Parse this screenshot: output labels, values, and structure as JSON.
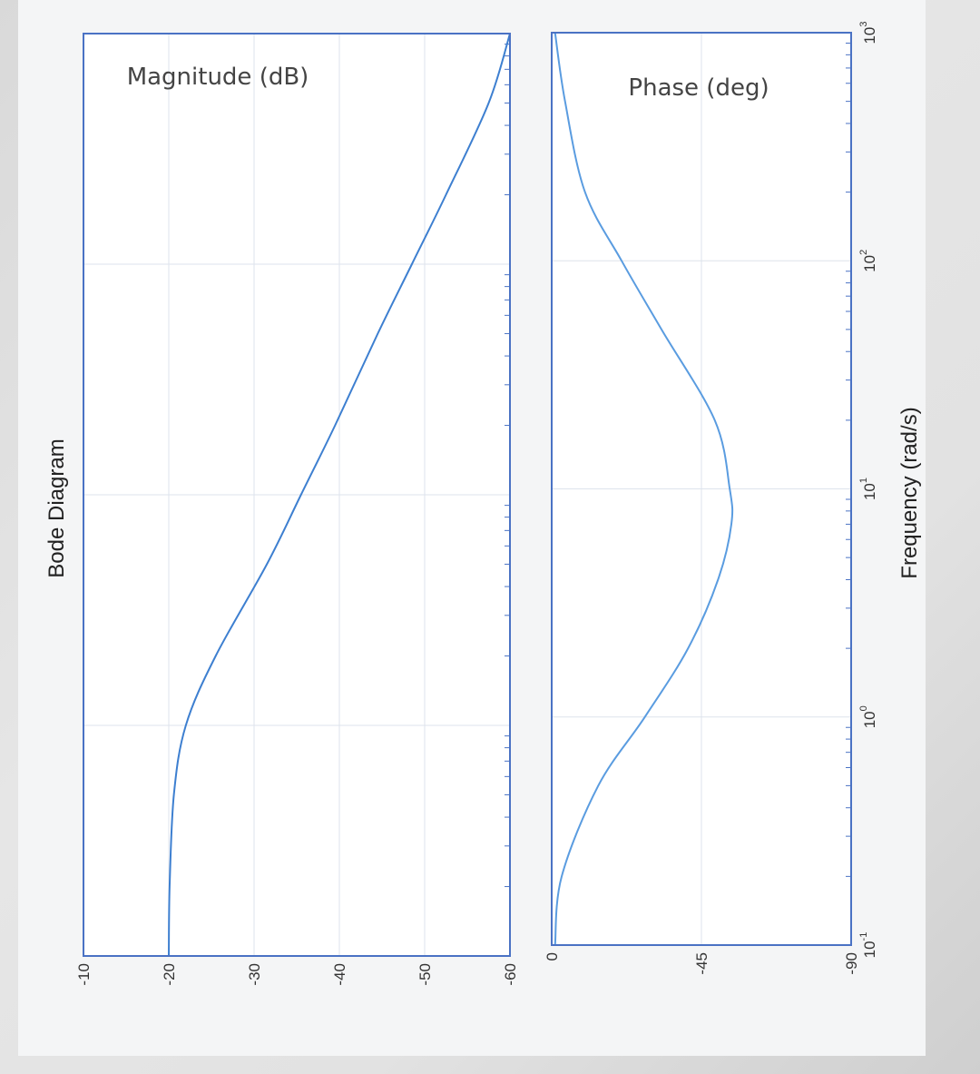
{
  "chart_data": {
    "type": "line",
    "title": "Bode Diagram",
    "xlabel": "Frequency  (rad/s)",
    "x_scale": "log",
    "xlim": [
      0.1,
      1000
    ],
    "x_tick_labels": [
      "10^-1",
      "10^0",
      "10^1",
      "10^2",
      "10^3"
    ],
    "grid": true,
    "subplots": [
      {
        "name": "magnitude",
        "ylabel": "Magnitude (dB)",
        "ylim": [
          -60,
          -10
        ],
        "y_ticks": [
          -10,
          -20,
          -30,
          -40,
          -50,
          -60
        ],
        "y_tick_labels": [
          "-10",
          "-20",
          "-30",
          "-40",
          "-50",
          "-60"
        ],
        "series": [
          {
            "x": [
              0.1,
              0.2,
              0.5,
              1,
              2,
              5,
              10,
              20,
              50,
              100,
              200,
              500,
              1000
            ],
            "values": [
              -20,
              -20.1,
              -20.6,
              -22,
              -25.5,
              -31.5,
              -35.5,
              -39.5,
              -44.5,
              -48.5,
              -52.5,
              -57.5,
              -60
            ]
          }
        ]
      },
      {
        "name": "phase",
        "ylabel": "Phase (deg)",
        "ylim": [
          -90,
          0
        ],
        "y_ticks": [
          0,
          -45,
          -90
        ],
        "y_tick_labels": [
          "0",
          "-45",
          "-90"
        ],
        "series": [
          {
            "x": [
              0.1,
              0.2,
              0.5,
              1,
              2,
              4,
              7,
              10,
              20,
              50,
              100,
              200,
              500,
              1000
            ],
            "values": [
              -1,
              -3,
              -14,
              -28,
              -41,
              -50,
              -54,
              -53.5,
              -49,
              -33,
              -21,
              -10,
              -4,
              -1
            ]
          }
        ]
      }
    ]
  }
}
